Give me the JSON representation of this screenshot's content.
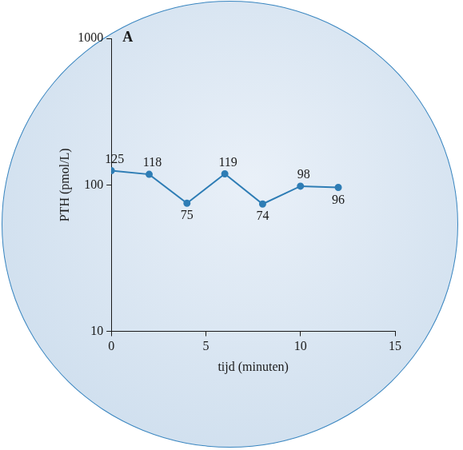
{
  "chart_data": {
    "type": "line",
    "title": "A",
    "x_label": "tijd (minuten)",
    "y_label": "PTH (pmol/L)",
    "x": [
      0,
      2,
      4,
      6,
      8,
      10,
      12
    ],
    "values": [
      125,
      118,
      75,
      119,
      74,
      98,
      96
    ],
    "color": "#2e7db5",
    "marker": "circle",
    "xlim": [
      0,
      15
    ],
    "xticks": [
      0,
      5,
      10,
      15
    ],
    "ylim": [
      10,
      1000
    ],
    "yticks": [
      10,
      100,
      1000
    ],
    "log": "y",
    "grid": false,
    "data_labels": true
  }
}
